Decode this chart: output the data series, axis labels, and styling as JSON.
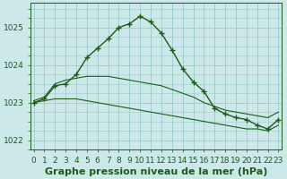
{
  "bg_color": "#cce8e8",
  "grid_color": "#99cccc",
  "line_color": "#1a5c1a",
  "marker_color": "#1a5c1a",
  "title": "Graphe pression niveau de la mer (hPa)",
  "ylim": [
    1021.75,
    1025.65
  ],
  "yticks": [
    1022,
    1023,
    1024,
    1025
  ],
  "xlim": [
    -0.3,
    23.3
  ],
  "xticks": [
    0,
    1,
    2,
    3,
    4,
    5,
    6,
    7,
    8,
    9,
    10,
    11,
    12,
    13,
    14,
    15,
    16,
    17,
    18,
    19,
    20,
    21,
    22,
    23
  ],
  "series_main_x": [
    0,
    1,
    2,
    3,
    4,
    5,
    6,
    7,
    8,
    9,
    10,
    11,
    12,
    13,
    14,
    15,
    16,
    17,
    18,
    19,
    20,
    21,
    22,
    23
  ],
  "series_main_y": [
    1023.0,
    1023.1,
    1023.45,
    1023.5,
    1023.75,
    1024.2,
    1024.45,
    1024.7,
    1025.0,
    1025.1,
    1025.3,
    1025.15,
    1024.85,
    1024.4,
    1023.9,
    1023.55,
    1023.3,
    1022.85,
    1022.7,
    1022.6,
    1022.55,
    1022.4,
    1022.3,
    1022.55
  ],
  "series_upper_x": [
    0,
    1,
    2,
    3,
    4,
    5,
    6,
    7,
    8,
    9,
    10,
    11,
    12,
    13,
    14,
    15,
    16,
    17,
    18,
    19,
    20,
    21,
    22,
    23
  ],
  "series_upper_y": [
    1023.05,
    1023.15,
    1023.5,
    1023.6,
    1023.65,
    1023.7,
    1023.7,
    1023.7,
    1023.65,
    1023.6,
    1023.55,
    1023.5,
    1023.45,
    1023.35,
    1023.25,
    1023.15,
    1023.0,
    1022.9,
    1022.8,
    1022.75,
    1022.7,
    1022.65,
    1022.6,
    1022.75
  ],
  "series_lower_x": [
    0,
    1,
    2,
    3,
    4,
    5,
    6,
    7,
    8,
    9,
    10,
    11,
    12,
    13,
    14,
    15,
    16,
    17,
    18,
    19,
    20,
    21,
    22,
    23
  ],
  "series_lower_y": [
    1023.0,
    1023.05,
    1023.1,
    1023.1,
    1023.1,
    1023.05,
    1023.0,
    1022.95,
    1022.9,
    1022.85,
    1022.8,
    1022.75,
    1022.7,
    1022.65,
    1022.6,
    1022.55,
    1022.5,
    1022.45,
    1022.4,
    1022.35,
    1022.3,
    1022.3,
    1022.25,
    1022.4
  ],
  "title_fontsize": 8,
  "tick_fontsize": 6.5
}
